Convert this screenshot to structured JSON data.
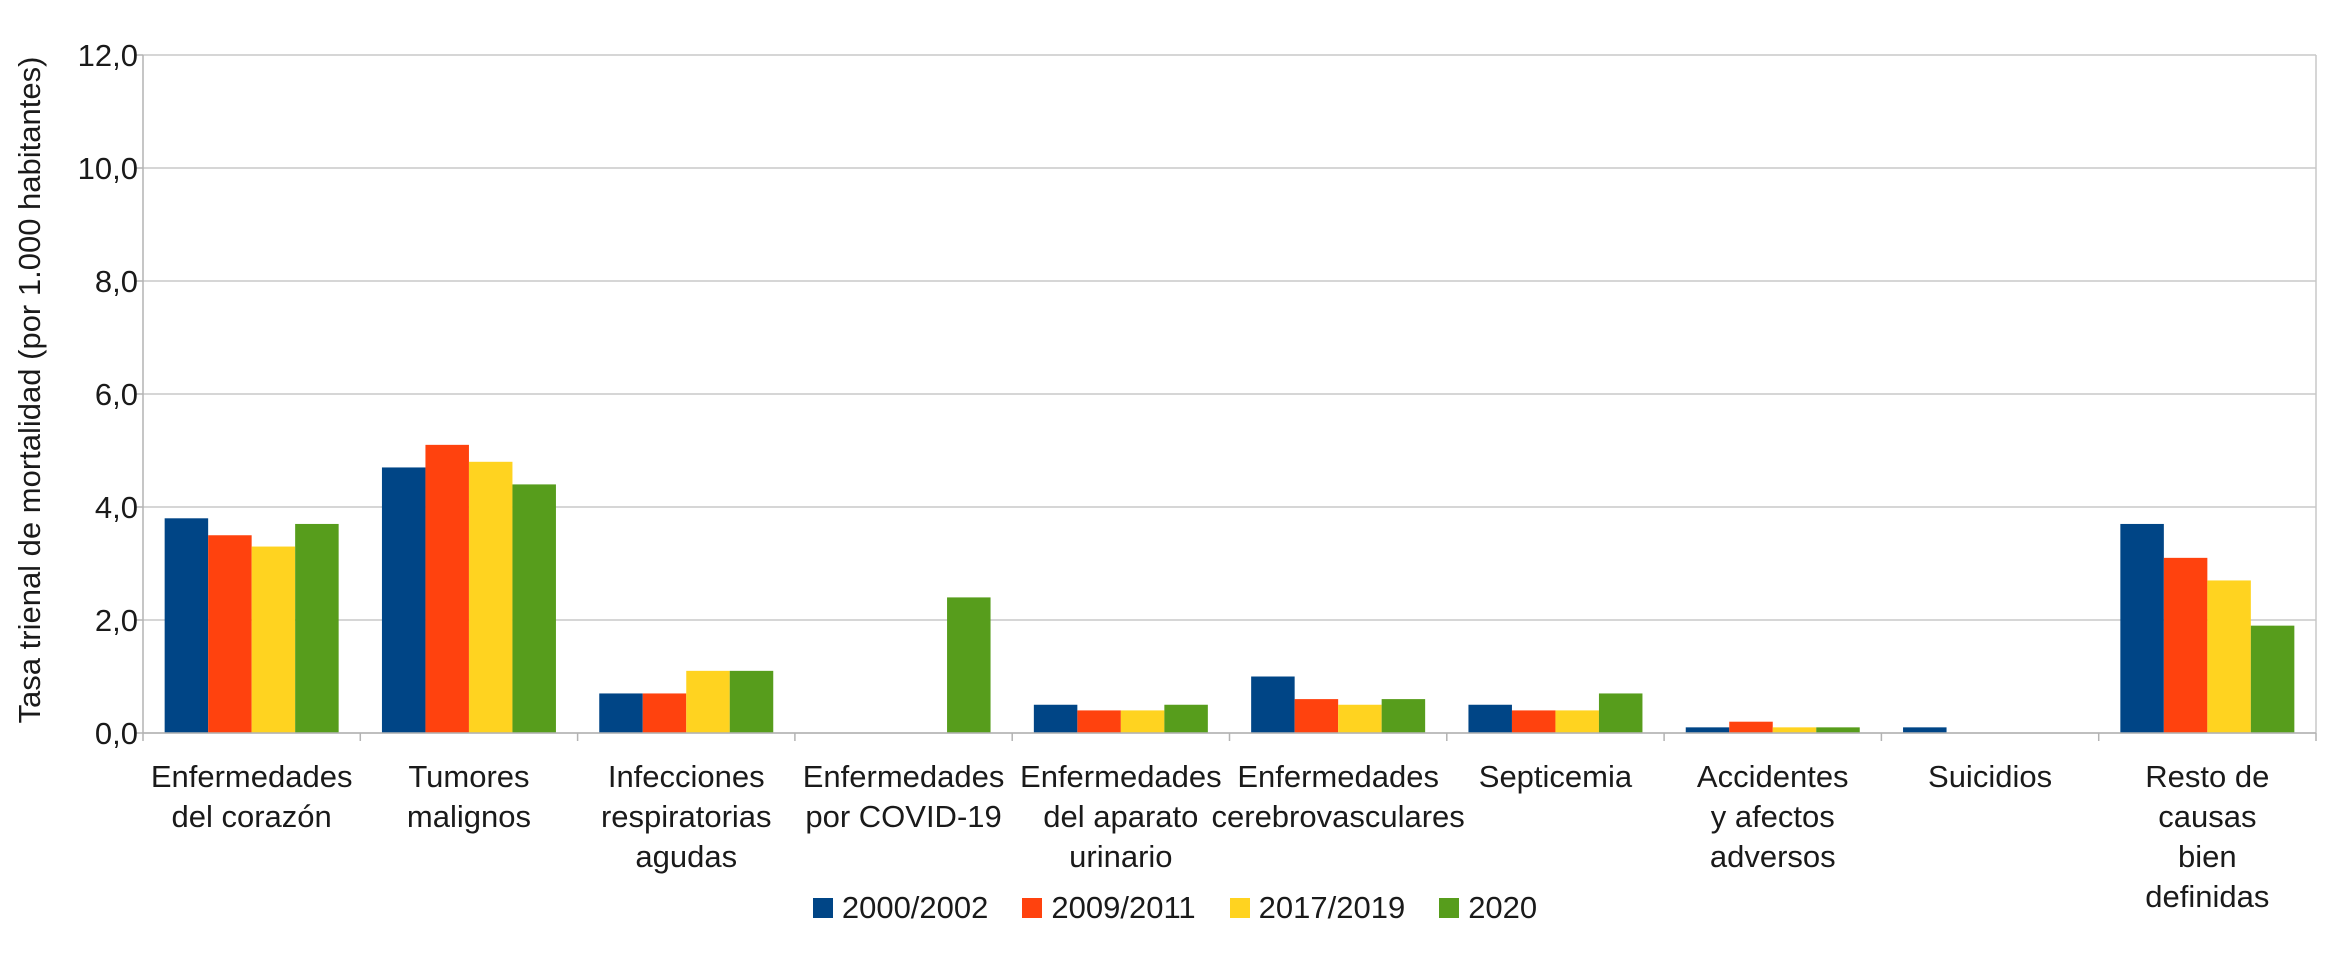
{
  "chart_data": {
    "type": "bar",
    "title": "",
    "xlabel": "",
    "ylabel": "Tasa trienal de mortalidad (por 1.000 habitantes)",
    "ylim": [
      0,
      12
    ],
    "yticks": [
      "0,0",
      "2,0",
      "4,0",
      "6,0",
      "8,0",
      "10,0",
      "12,0"
    ],
    "grid": true,
    "legend_position": "bottom",
    "categories": [
      [
        "Enfermedades",
        "del corazón"
      ],
      [
        "Tumores",
        "malignos"
      ],
      [
        "Infecciones",
        "respiratorias",
        "agudas"
      ],
      [
        "Enfermedades",
        "por COVID-19"
      ],
      [
        "Enfermedades",
        "del aparato",
        "urinario"
      ],
      [
        "Enfermedades",
        "cerebrovasculares"
      ],
      [
        "Septicemia"
      ],
      [
        "Accidentes",
        "y afectos",
        "adversos"
      ],
      [
        "Suicidios"
      ],
      [
        "Resto de",
        "causas",
        "bien",
        "definidas"
      ]
    ],
    "series": [
      {
        "name": "2000/2002",
        "color": "#004586",
        "values": [
          3.8,
          4.7,
          0.7,
          0.0,
          0.5,
          1.0,
          0.5,
          0.1,
          0.1,
          3.7
        ]
      },
      {
        "name": "2009/2011",
        "color": "#ff420e",
        "values": [
          3.5,
          5.1,
          0.7,
          0.0,
          0.4,
          0.6,
          0.4,
          0.2,
          0.0,
          3.1
        ]
      },
      {
        "name": "2017/2019",
        "color": "#ffd320",
        "values": [
          3.3,
          4.8,
          1.1,
          0.0,
          0.4,
          0.5,
          0.4,
          0.1,
          0.0,
          2.7
        ]
      },
      {
        "name": "2020",
        "color": "#579d1c",
        "values": [
          3.7,
          4.4,
          1.1,
          2.4,
          0.5,
          0.6,
          0.7,
          0.1,
          0.0,
          1.9
        ]
      }
    ]
  }
}
